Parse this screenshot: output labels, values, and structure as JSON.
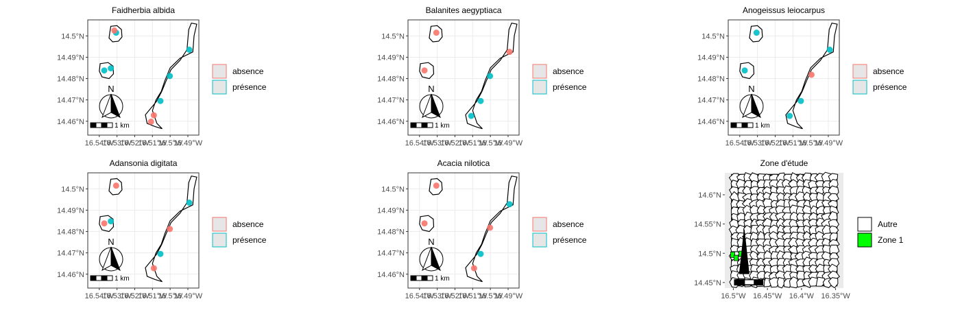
{
  "chart_data": [
    {
      "type": "map",
      "title": "Faidherbia albida",
      "x_ticks": [
        "16.54°W",
        "16.53°W",
        "16.52°W",
        "16.51°W",
        "16.5°W",
        "16.49°W"
      ],
      "y_ticks": [
        "14.5°N",
        "14.49°N",
        "14.48°N",
        "14.47°N",
        "14.46°N"
      ],
      "legend": [
        "absence",
        "présence"
      ],
      "legend_colors": [
        "#f8766d",
        "#00bfc4"
      ],
      "scalebar": "1 km",
      "north_arrow": "N",
      "points": [
        {
          "lon": -16.5305,
          "lat": 14.5015,
          "class": "présence"
        },
        {
          "lon": -16.5315,
          "lat": 14.5025,
          "class": "absence"
        },
        {
          "lon": -16.5372,
          "lat": 14.4838,
          "class": "présence"
        },
        {
          "lon": -16.5335,
          "lat": 14.4848,
          "class": "présence"
        },
        {
          "lon": -16.5092,
          "lat": 14.4628,
          "class": "absence"
        },
        {
          "lon": -16.5108,
          "lat": 14.4598,
          "class": "absence"
        },
        {
          "lon": -16.5055,
          "lat": 14.4695,
          "class": "présence"
        },
        {
          "lon": -16.5002,
          "lat": 14.4812,
          "class": "présence"
        },
        {
          "lon": -16.4892,
          "lat": 14.4935,
          "class": "présence"
        }
      ]
    },
    {
      "type": "map",
      "title": "Balanites aegyptiaca",
      "x_ticks": [
        "16.54°W",
        "16.53°W",
        "16.52°W",
        "16.51°W",
        "16.5°W",
        "16.49°W"
      ],
      "y_ticks": [
        "14.5°N",
        "14.49°N",
        "14.48°N",
        "14.47°N",
        "14.46°N"
      ],
      "legend": [
        "absence",
        "présence"
      ],
      "legend_colors": [
        "#f8766d",
        "#00bfc4"
      ],
      "scalebar": "1 km",
      "north_arrow": "N",
      "points": [
        {
          "lon": -16.5305,
          "lat": 14.5015,
          "class": "absence"
        },
        {
          "lon": -16.5372,
          "lat": 14.4838,
          "class": "absence"
        },
        {
          "lon": -16.5108,
          "lat": 14.4625,
          "class": "présence"
        },
        {
          "lon": -16.5055,
          "lat": 14.4695,
          "class": "présence"
        },
        {
          "lon": -16.5002,
          "lat": 14.4812,
          "class": "présence"
        },
        {
          "lon": -16.4892,
          "lat": 14.4925,
          "class": "absence"
        }
      ]
    },
    {
      "type": "map",
      "title": "Anogeissus leiocarpus",
      "x_ticks": [
        "16.54°W",
        "16.53°W",
        "16.52°W",
        "16.51°W",
        "16.5°W",
        "16.49°W"
      ],
      "y_ticks": [
        "14.5°N",
        "14.49°N",
        "14.48°N",
        "14.47°N",
        "14.46°N"
      ],
      "legend": [
        "absence",
        "présence"
      ],
      "legend_colors": [
        "#f8766d",
        "#00bfc4"
      ],
      "scalebar": "1 km",
      "north_arrow": "N",
      "points": [
        {
          "lon": -16.5305,
          "lat": 14.5015,
          "class": "présence"
        },
        {
          "lon": -16.5372,
          "lat": 14.4838,
          "class": "présence"
        },
        {
          "lon": -16.5118,
          "lat": 14.4625,
          "class": "présence"
        },
        {
          "lon": -16.5055,
          "lat": 14.4695,
          "class": "présence"
        },
        {
          "lon": -16.4995,
          "lat": 14.4818,
          "class": "absence"
        },
        {
          "lon": -16.4892,
          "lat": 14.4935,
          "class": "présence"
        }
      ]
    },
    {
      "type": "map",
      "title": "Adansonia digitata",
      "x_ticks": [
        "16.54°W",
        "16.53°W",
        "16.52°W",
        "16.51°W",
        "16.5°W",
        "16.49°W"
      ],
      "y_ticks": [
        "14.5°N",
        "14.49°N",
        "14.48°N",
        "14.47°N",
        "14.46°N"
      ],
      "legend": [
        "absence",
        "présence"
      ],
      "legend_colors": [
        "#f8766d",
        "#00bfc4"
      ],
      "scalebar": "1 km",
      "north_arrow": "N",
      "points": [
        {
          "lon": -16.5305,
          "lat": 14.5015,
          "class": "absence"
        },
        {
          "lon": -16.5372,
          "lat": 14.4838,
          "class": "absence"
        },
        {
          "lon": -16.5335,
          "lat": 14.4848,
          "class": "présence"
        },
        {
          "lon": -16.5092,
          "lat": 14.4628,
          "class": "absence"
        },
        {
          "lon": -16.5055,
          "lat": 14.4695,
          "class": "présence"
        },
        {
          "lon": -16.5002,
          "lat": 14.4812,
          "class": "absence"
        },
        {
          "lon": -16.4892,
          "lat": 14.4935,
          "class": "présence"
        }
      ]
    },
    {
      "type": "map",
      "title": "Acacia nilotica",
      "x_ticks": [
        "16.54°W",
        "16.53°W",
        "16.52°W",
        "16.51°W",
        "16.5°W",
        "16.49°W"
      ],
      "y_ticks": [
        "14.5°N",
        "14.49°N",
        "14.48°N",
        "14.47°N",
        "14.46°N"
      ],
      "legend": [
        "absence",
        "présence"
      ],
      "legend_colors": [
        "#f8766d",
        "#00bfc4"
      ],
      "scalebar": "1 km",
      "north_arrow": "N",
      "points": [
        {
          "lon": -16.5305,
          "lat": 14.5015,
          "class": "absence"
        },
        {
          "lon": -16.5372,
          "lat": 14.4838,
          "class": "absence"
        },
        {
          "lon": -16.5092,
          "lat": 14.4628,
          "class": "absence"
        },
        {
          "lon": -16.5055,
          "lat": 14.4695,
          "class": "présence"
        },
        {
          "lon": -16.5002,
          "lat": 14.4818,
          "class": "absence"
        },
        {
          "lon": -16.4892,
          "lat": 14.4928,
          "class": "présence"
        }
      ]
    },
    {
      "type": "map",
      "title": "Zone d'étude",
      "x_ticks": [
        "16.5°W",
        "16.45°W",
        "16.4°W",
        "16.35°W"
      ],
      "y_ticks": [
        "14.6°N",
        "14.55°N",
        "14.5°N",
        "14.45°N"
      ],
      "legend": [
        "Autre",
        "Zone 1"
      ],
      "legend_colors": [
        "#ffffff",
        "#00ff00"
      ]
    }
  ]
}
